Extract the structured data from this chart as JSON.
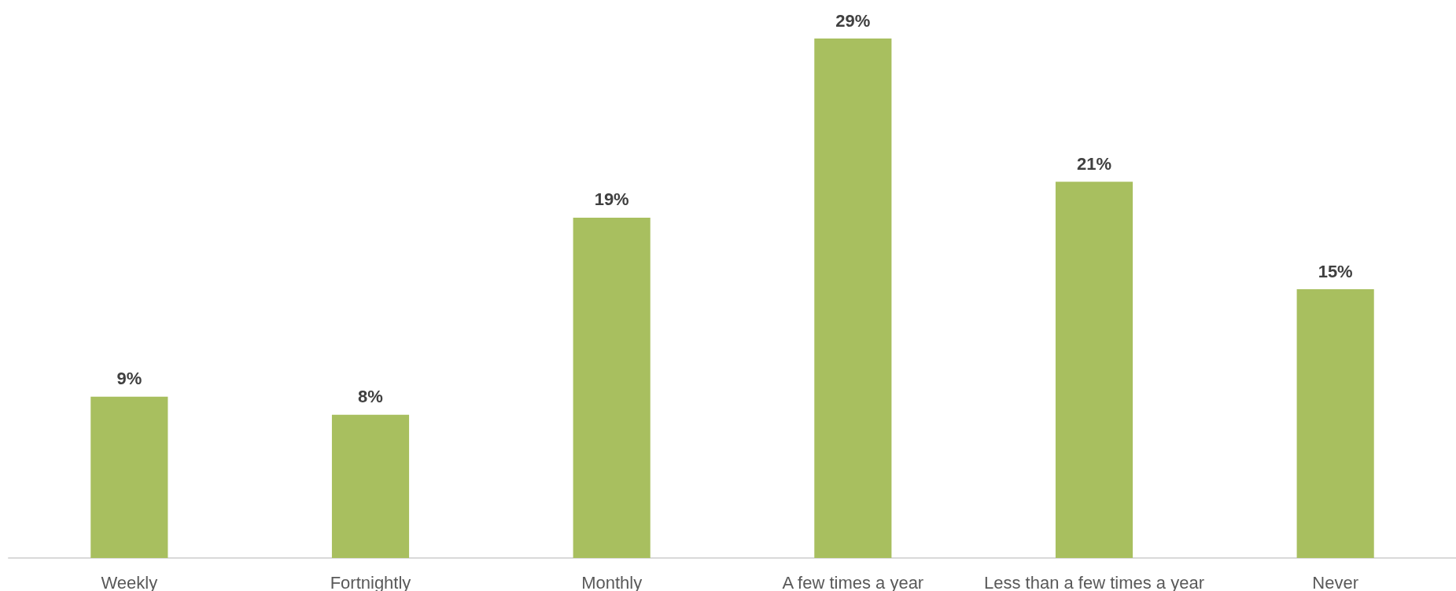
{
  "chart_data": {
    "type": "bar",
    "categories": [
      "Weekly",
      "Fortnightly",
      "Monthly",
      "A few times a year",
      "Less than a few times a year",
      "Never"
    ],
    "values": [
      9,
      8,
      19,
      29,
      21,
      15
    ],
    "value_labels": [
      "9%",
      "8%",
      "19%",
      "29%",
      "21%",
      "15%"
    ],
    "color": "#a8bf5f"
  }
}
